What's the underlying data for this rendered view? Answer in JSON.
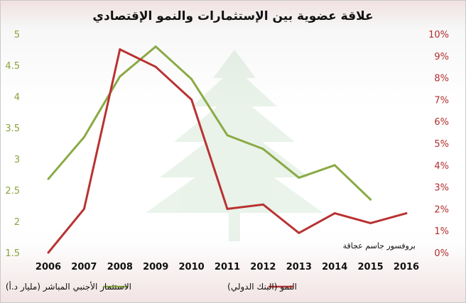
{
  "chart_data": {
    "type": "line",
    "title": "علاقة عضوية بين الإستثمارات والنمو الإقتصادي",
    "annotation": "بروفسور جاسم عجاقة",
    "categories": [
      "2006",
      "2007",
      "2008",
      "2009",
      "2010",
      "2011",
      "2012",
      "2013",
      "2014",
      "2015",
      "2016"
    ],
    "y_left": {
      "ylim": [
        1.5,
        5
      ],
      "ticks": [
        "1.5",
        "2",
        "2.5",
        "3",
        "3.5",
        "4",
        "4.5",
        "5"
      ],
      "color": "#86a63b"
    },
    "y_right": {
      "ylim": [
        0,
        10
      ],
      "ticks": [
        "0%",
        "1%",
        "2%",
        "3%",
        "4%",
        "5%",
        "6%",
        "7%",
        "8%",
        "9%",
        "10%"
      ],
      "color": "#b22d2d"
    },
    "series": [
      {
        "name": "الاستثمار الأجنبي المباشر (مليار د.أ)",
        "axis": "left",
        "color": "#8aaa44",
        "values": [
          2.68,
          3.35,
          4.32,
          4.8,
          4.28,
          3.38,
          3.16,
          2.7,
          2.9,
          2.35,
          null
        ]
      },
      {
        "name": "النمو (البنك الدولي)",
        "axis": "right",
        "color": "#b93232",
        "values": [
          0.0,
          2.0,
          9.3,
          8.5,
          7.0,
          2.0,
          2.2,
          0.9,
          1.8,
          1.35,
          1.8
        ]
      }
    ],
    "grid": false,
    "legend_position": "bottom"
  },
  "icons": {
    "background": "cedar-tree-watermark"
  }
}
